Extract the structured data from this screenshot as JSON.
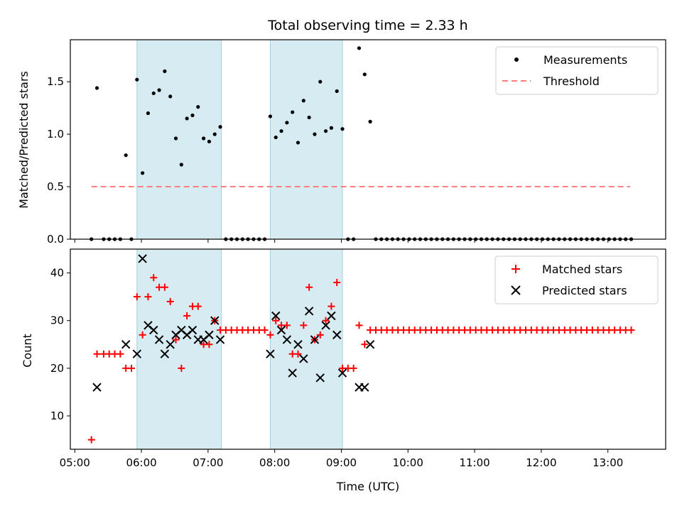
{
  "chart_data": [
    {
      "type": "scatter",
      "title": "Total observing time = 2.33 h",
      "xlabel": "",
      "ylabel": "Matched/Predicted stars",
      "xlim": [
        "04:56",
        "13:52"
      ],
      "ylim": [
        0,
        1.9
      ],
      "yticks": [
        0.0,
        0.5,
        1.0,
        1.5
      ],
      "ytick_labels": [
        "0.0",
        "0.5",
        "1.0",
        "1.5"
      ],
      "grid": false,
      "legend": {
        "placement": "top-right",
        "entries": [
          "Measurements",
          "Threshold"
        ]
      },
      "shaded_intervals": [
        [
          "05:56",
          "07:12"
        ],
        [
          "07:56",
          "09:01"
        ]
      ],
      "colors": {
        "measurements": "#000000",
        "threshold": "#ff7f7f",
        "shade": "#add8e6",
        "shade_edge": "#9fd0dc"
      },
      "threshold": {
        "value": 0.5,
        "x_range": [
          "05:15",
          "13:20"
        ]
      },
      "series": [
        {
          "name": "Measurements",
          "marker": "dot",
          "x": [
            "05:15",
            "05:20",
            "05:26",
            "05:31",
            "05:36",
            "05:41",
            "05:46",
            "05:51",
            "05:56",
            "06:01",
            "06:06",
            "06:11",
            "06:16",
            "06:21",
            "06:26",
            "06:31",
            "06:36",
            "06:41",
            "06:46",
            "06:51",
            "06:56",
            "07:01",
            "07:06",
            "07:11",
            "07:16",
            "07:21",
            "07:26",
            "07:31",
            "07:36",
            "07:41",
            "07:46",
            "07:51",
            "07:56",
            "08:01",
            "08:06",
            "08:11",
            "08:16",
            "08:21",
            "08:26",
            "08:31",
            "08:36",
            "08:41",
            "08:46",
            "08:51",
            "08:56",
            "09:01",
            "09:06",
            "09:11",
            "09:16",
            "09:21",
            "09:26",
            "09:31",
            "09:36",
            "09:41",
            "09:46",
            "09:51",
            "09:56",
            "10:01",
            "10:06",
            "10:11",
            "10:16",
            "10:21",
            "10:26",
            "10:31",
            "10:36",
            "10:41",
            "10:46",
            "10:51",
            "10:56",
            "11:01",
            "11:06",
            "11:11",
            "11:16",
            "11:21",
            "11:26",
            "11:31",
            "11:36",
            "11:41",
            "11:46",
            "11:51",
            "11:56",
            "12:01",
            "12:06",
            "12:11",
            "12:16",
            "12:21",
            "12:26",
            "12:31",
            "12:36",
            "12:41",
            "12:46",
            "12:51",
            "12:56",
            "13:01",
            "13:06",
            "13:11",
            "13:16",
            "13:21"
          ],
          "y": [
            0,
            1.44,
            0,
            0,
            0,
            0,
            0.8,
            0,
            1.52,
            0.63,
            1.2,
            1.39,
            1.42,
            1.6,
            1.36,
            0.96,
            0.71,
            1.15,
            1.18,
            1.26,
            0.96,
            0.93,
            1.0,
            1.07,
            0,
            0,
            0,
            0,
            0,
            0,
            0,
            0,
            1.17,
            0.97,
            1.03,
            1.11,
            1.21,
            0.92,
            1.32,
            1.16,
            1.0,
            1.5,
            1.03,
            1.06,
            1.41,
            1.05,
            0,
            0,
            1.82,
            1.57,
            1.12,
            0,
            0,
            0,
            0,
            0,
            0,
            0,
            0,
            0,
            0,
            0,
            0,
            0,
            0,
            0,
            0,
            0,
            0,
            0,
            0,
            0,
            0,
            0,
            0,
            0,
            0,
            0,
            0,
            0,
            0,
            0,
            0,
            0,
            0,
            0,
            0,
            0,
            0,
            0,
            0,
            0,
            0,
            0,
            0,
            0,
            0,
            0
          ]
        },
        {
          "name": "Threshold",
          "marker": "dashed-line",
          "x": [
            "05:15",
            "13:20"
          ],
          "y": [
            0.5,
            0.5
          ]
        }
      ]
    },
    {
      "type": "scatter",
      "title": "",
      "xlabel": "Time (UTC)",
      "ylabel": "Count",
      "xlim": [
        "04:56",
        "13:52"
      ],
      "ylim": [
        3,
        45
      ],
      "yticks": [
        10,
        20,
        30,
        40
      ],
      "ytick_labels": [
        "10",
        "20",
        "30",
        "40"
      ],
      "xticks": [
        "05:00",
        "06:00",
        "07:00",
        "08:00",
        "09:00",
        "10:00",
        "11:00",
        "12:00",
        "13:00"
      ],
      "grid": false,
      "legend": {
        "placement": "top-right",
        "entries": [
          "Matched stars",
          "Predicted stars"
        ]
      },
      "shaded_intervals": [
        [
          "05:56",
          "07:12"
        ],
        [
          "07:56",
          "09:01"
        ]
      ],
      "colors": {
        "matched": "#ff0000",
        "predicted": "#000000",
        "shade": "#add8e6",
        "shade_edge": "#9fd0dc"
      },
      "series": [
        {
          "name": "Matched stars",
          "marker": "plus",
          "x": [
            "05:15",
            "05:20",
            "05:26",
            "05:31",
            "05:36",
            "05:41",
            "05:46",
            "05:51",
            "05:56",
            "06:01",
            "06:06",
            "06:11",
            "06:16",
            "06:21",
            "06:26",
            "06:31",
            "06:36",
            "06:41",
            "06:46",
            "06:51",
            "06:56",
            "07:01",
            "07:06",
            "07:11",
            "07:16",
            "07:21",
            "07:26",
            "07:31",
            "07:36",
            "07:41",
            "07:46",
            "07:51",
            "07:56",
            "08:01",
            "08:06",
            "08:11",
            "08:16",
            "08:21",
            "08:26",
            "08:31",
            "08:36",
            "08:41",
            "08:46",
            "08:51",
            "08:56",
            "09:01",
            "09:06",
            "09:11",
            "09:16",
            "09:21",
            "09:26",
            "09:31",
            "09:36",
            "09:41",
            "09:46",
            "09:51",
            "09:56",
            "10:01",
            "10:06",
            "10:11",
            "10:16",
            "10:21",
            "10:26",
            "10:31",
            "10:36",
            "10:41",
            "10:46",
            "10:51",
            "10:56",
            "11:01",
            "11:06",
            "11:11",
            "11:16",
            "11:21",
            "11:26",
            "11:31",
            "11:36",
            "11:41",
            "11:46",
            "11:51",
            "11:56",
            "12:01",
            "12:06",
            "12:11",
            "12:16",
            "12:21",
            "12:26",
            "12:31",
            "12:36",
            "12:41",
            "12:46",
            "12:51",
            "12:56",
            "13:01",
            "13:06",
            "13:11",
            "13:16",
            "13:21"
          ],
          "y": [
            5,
            23,
            23,
            23,
            23,
            23,
            20,
            20,
            35,
            27,
            35,
            39,
            37,
            37,
            34,
            26,
            20,
            31,
            33,
            33,
            25,
            25,
            30,
            28,
            28,
            28,
            28,
            28,
            28,
            28,
            28,
            28,
            27,
            30,
            29,
            29,
            23,
            23,
            29,
            37,
            26,
            27,
            30,
            33,
            38,
            20,
            20,
            20,
            29,
            25,
            28,
            28,
            28,
            28,
            28,
            28,
            28,
            28,
            28,
            28,
            28,
            28,
            28,
            28,
            28,
            28,
            28,
            28,
            28,
            28,
            28,
            28,
            28,
            28,
            28,
            28,
            28,
            28,
            28,
            28,
            28,
            28,
            28,
            28,
            28,
            28,
            28,
            28,
            28,
            28,
            28,
            28,
            28,
            28,
            28,
            28,
            28,
            28
          ]
        },
        {
          "name": "Predicted stars",
          "marker": "x",
          "x": [
            "05:20",
            "05:46",
            "05:56",
            "06:01",
            "06:06",
            "06:11",
            "06:16",
            "06:21",
            "06:26",
            "06:31",
            "06:36",
            "06:41",
            "06:46",
            "06:51",
            "06:56",
            "07:01",
            "07:06",
            "07:11",
            "07:56",
            "08:01",
            "08:06",
            "08:11",
            "08:16",
            "08:21",
            "08:26",
            "08:31",
            "08:36",
            "08:41",
            "08:46",
            "08:51",
            "08:56",
            "09:01",
            "09:16",
            "09:21",
            "09:26"
          ],
          "y": [
            16,
            25,
            23,
            43,
            29,
            28,
            26,
            23,
            25,
            27,
            28,
            27,
            28,
            26,
            26,
            27,
            30,
            26,
            23,
            31,
            28,
            26,
            19,
            25,
            22,
            32,
            26,
            18,
            29,
            31,
            27,
            19,
            16,
            16,
            25
          ]
        }
      ]
    }
  ]
}
